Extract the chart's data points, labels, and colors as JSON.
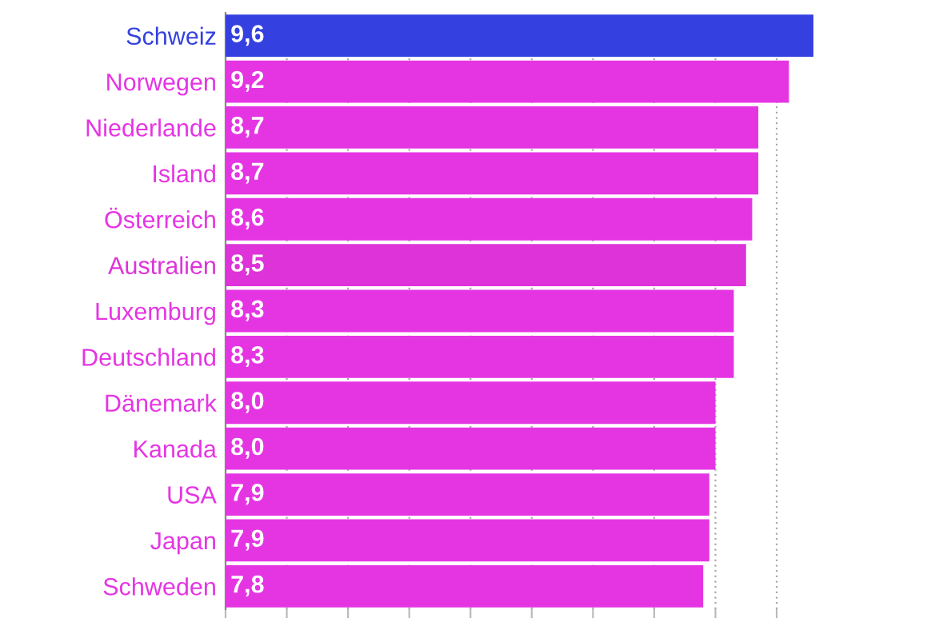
{
  "chart_data": {
    "type": "bar",
    "orientation": "horizontal",
    "categories": [
      "Schweiz",
      "Norwegen",
      "Niederlande",
      "Island",
      "Österreich",
      "Australien",
      "Luxemburg",
      "Deutschland",
      "Dänemark",
      "Kanada",
      "USA",
      "Japan",
      "Schweden"
    ],
    "values": [
      9.6,
      9.2,
      8.7,
      8.7,
      8.6,
      8.5,
      8.3,
      8.3,
      8.0,
      8.0,
      7.9,
      7.9,
      7.8
    ],
    "value_labels": [
      "9,6",
      "9,2",
      "8,7",
      "8,7",
      "8,6",
      "8,5",
      "8,3",
      "8,3",
      "8,0",
      "8,0",
      "7,9",
      "7,9",
      "7,8"
    ],
    "colors": [
      "#3440e0",
      "#e535e3",
      "#e535e3",
      "#e535e3",
      "#e535e3",
      "#dd33d8",
      "#e535e3",
      "#e535e3",
      "#e535e3",
      "#e535e3",
      "#e535e3",
      "#e535e3",
      "#e535e3"
    ],
    "xticks": [
      {
        "value": 0,
        "label": null
      },
      {
        "value": 1,
        "label": null
      },
      {
        "value": 2,
        "label": null
      },
      {
        "value": 3,
        "label": null
      },
      {
        "value": 4,
        "label": null
      },
      {
        "value": 5,
        "label": null
      },
      {
        "value": 6,
        "label": null
      },
      {
        "value": 7,
        "label": null
      },
      {
        "value": 8,
        "label": null
      },
      {
        "value": 9,
        "label": null
      }
    ],
    "grid": "x",
    "tick_labels": "y"
  }
}
